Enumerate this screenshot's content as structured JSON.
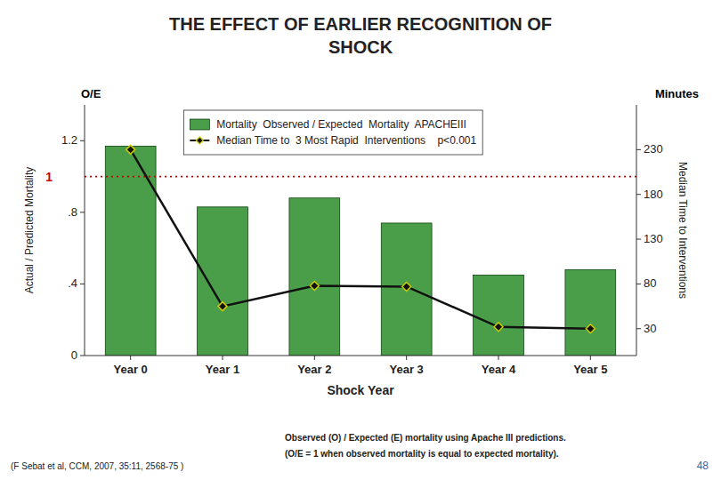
{
  "chart_data": {
    "type": "bar",
    "title": [
      "THE EFFECT OF EARLIER RECOGNITION OF",
      "SHOCK"
    ],
    "categories": [
      "Year 0",
      "Year 1",
      "Year 2",
      "Year 3",
      "Year 4",
      "Year 5"
    ],
    "series": [
      {
        "name": "Mortality  Observed / Expected  Mortality  APACHEIII",
        "type": "bar",
        "color": "#4a9e4a",
        "values": [
          1.17,
          0.83,
          0.88,
          0.74,
          0.45,
          0.48
        ]
      },
      {
        "name": "Median Time to  3 Most Rapid  Interventions    p<0.001",
        "type": "line",
        "axis": "y2",
        "color": "#111111",
        "marker": "diamond",
        "values": [
          230,
          55,
          78,
          77,
          32,
          30
        ]
      }
    ],
    "ylim": [
      0,
      1.4
    ],
    "yticks": [
      0,
      {
        "value": 0.4,
        "label": ".4"
      },
      {
        "value": 0.8,
        "label": ".8"
      },
      1.2
    ],
    "y2lim": [
      0,
      280
    ],
    "y2ticks": [
      30,
      80,
      130,
      180,
      230
    ],
    "xlabel": "Shock Year",
    "ylabel": "Actual / Predicted Mortality",
    "y2label": "Median Time to Interventions",
    "reference_line": {
      "value": 1.0,
      "label": "1",
      "color": "#cc0000",
      "line_style": "dotted"
    },
    "annotations": [
      {
        "text": "O/E",
        "axis": "y"
      },
      {
        "text": "Minutes",
        "axis": "y2"
      }
    ],
    "footnotes": [
      "(F Sebat et al, CCM, 2007, 35:11, 2568-75 )",
      "Observed (O) / Expected (E) mortality using Apache III predictions.",
      "(O/E = 1 when observed mortality is equal to expected mortality)."
    ],
    "page_number": "48",
    "legend": "upper left",
    "grid": false
  }
}
